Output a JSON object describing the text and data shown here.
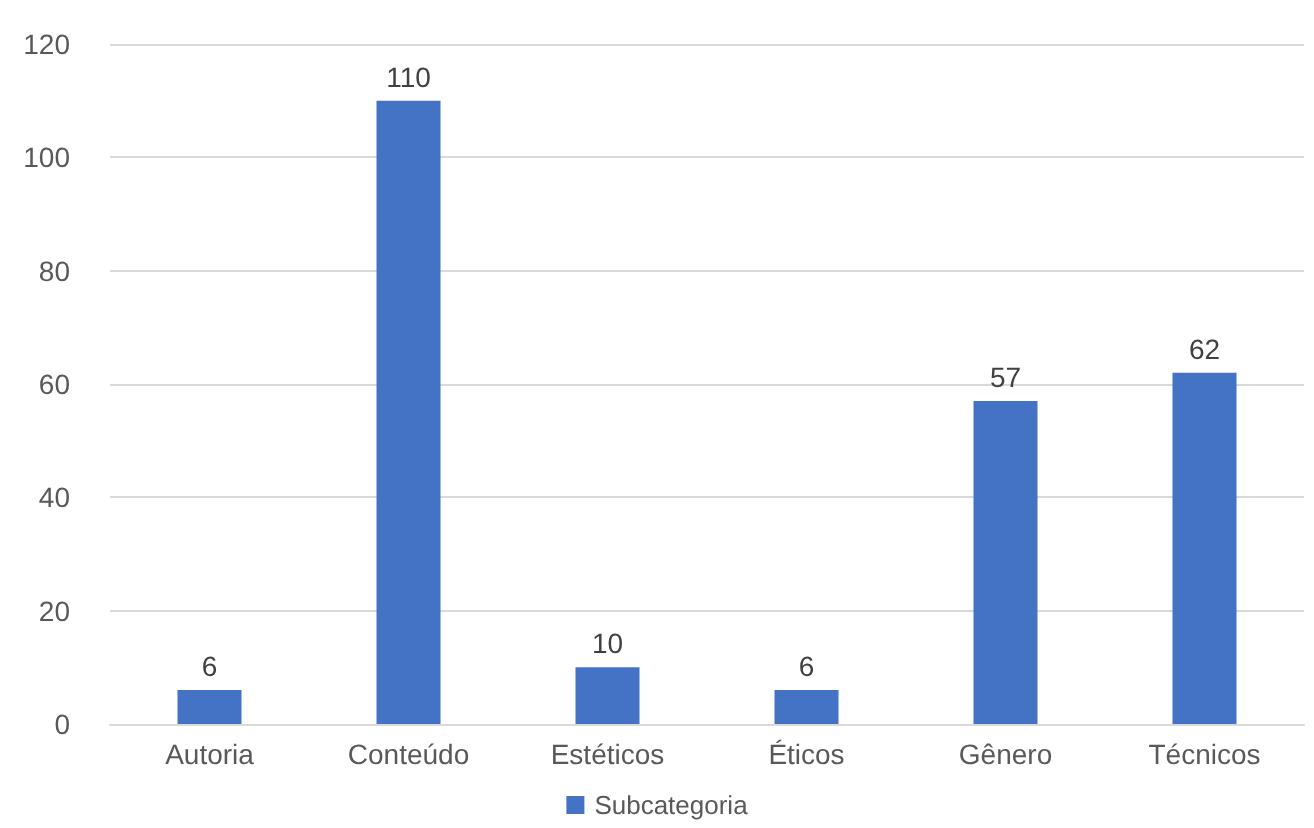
{
  "chart_data": {
    "type": "bar",
    "categories": [
      "Autoria",
      "Conteúdo",
      "Estéticos",
      "Éticos",
      "Gênero",
      "Técnicos"
    ],
    "series": [
      {
        "name": "Subcategoria",
        "color": "#4472c4",
        "values": [
          6,
          110,
          10,
          6,
          57,
          62
        ]
      }
    ],
    "ylim": [
      0,
      120
    ],
    "yticks": [
      0,
      20,
      40,
      60,
      80,
      100,
      120
    ],
    "grid": "y",
    "legend": "bottom",
    "data_labels": true
  }
}
